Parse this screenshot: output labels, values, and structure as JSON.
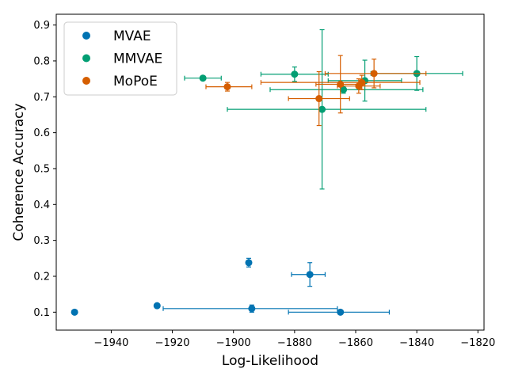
{
  "chart_data": {
    "type": "scatter",
    "title": "",
    "xlabel": "Log-Likelihood",
    "ylabel": "Coherence Accuracy",
    "xlim": [
      -1958,
      -1818
    ],
    "ylim": [
      0.05,
      0.93
    ],
    "xticks": [
      -1940,
      -1920,
      -1900,
      -1880,
      -1860,
      -1840,
      -1820
    ],
    "xtick_labels": [
      "−1940",
      "−1920",
      "−1900",
      "−1880",
      "−1860",
      "−1840",
      "−1820"
    ],
    "yticks": [
      0.1,
      0.2,
      0.3,
      0.4,
      0.5,
      0.6,
      0.7,
      0.8,
      0.9
    ],
    "ytick_labels": [
      "0.1",
      "0.2",
      "0.3",
      "0.4",
      "0.5",
      "0.6",
      "0.7",
      "0.8",
      "0.9"
    ],
    "grid": false,
    "legend_position": "top-left",
    "series": [
      {
        "name": "MVAE",
        "color": "#0173b2",
        "points": [
          {
            "x": -1952,
            "y": 0.1
          },
          {
            "x": -1925,
            "y": 0.118
          },
          {
            "x": -1895,
            "y": 0.238,
            "yerr": 0.012
          },
          {
            "x": -1894,
            "y": 0.11,
            "xerr": [
              29,
              28
            ],
            "yerr": 0.01
          },
          {
            "x": -1875,
            "y": 0.205,
            "xerr": [
              6,
              5
            ],
            "yerr": 0.033
          },
          {
            "x": -1865,
            "y": 0.1,
            "xerr": [
              17,
              16
            ]
          }
        ]
      },
      {
        "name": "MMVAE",
        "color": "#029e73",
        "points": [
          {
            "x": -1910,
            "y": 0.752,
            "xerr": [
              6,
              6
            ],
            "yerr": 0.005
          },
          {
            "x": -1880,
            "y": 0.763,
            "xerr": [
              11,
              11
            ],
            "yerr": 0.02
          },
          {
            "x": -1871,
            "y": 0.665,
            "xerr": [
              31,
              34
            ],
            "yerr": [
              0.222,
              0.222
            ]
          },
          {
            "x": -1864,
            "y": 0.72,
            "xerr": [
              24,
              26
            ],
            "yerr": 0.01
          },
          {
            "x": -1857,
            "y": 0.745,
            "xerr": [
              12,
              12
            ],
            "yerr": 0.057
          },
          {
            "x": -1840,
            "y": 0.765,
            "xerr": [
              15,
              15
            ],
            "yerr": 0.047
          }
        ]
      },
      {
        "name": "MoPoE",
        "color": "#d55e00",
        "points": [
          {
            "x": -1902,
            "y": 0.728,
            "xerr": [
              7,
              8
            ],
            "yerr": 0.012
          },
          {
            "x": -1872,
            "y": 0.695,
            "xerr": [
              10,
              10
            ],
            "yerr": 0.075
          },
          {
            "x": -1865,
            "y": 0.735,
            "xerr": [
              8,
              8
            ],
            "yerr": 0.08
          },
          {
            "x": -1859,
            "y": 0.73,
            "xerr": [
              7,
              7
            ],
            "yerr": 0.02
          },
          {
            "x": -1858,
            "y": 0.74,
            "xerr": [
              33,
              19
            ],
            "yerr": 0.02
          },
          {
            "x": -1854,
            "y": 0.765,
            "xerr": [
              16,
              17
            ],
            "yerr": 0.04
          }
        ]
      }
    ]
  }
}
